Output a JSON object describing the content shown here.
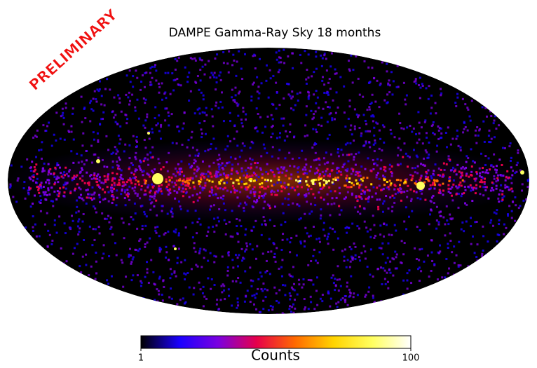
{
  "chart_data": {
    "type": "mollweide-map",
    "title": "DAMPE Gamma-Ray Sky 18 months",
    "watermark": "PRELIMINARY",
    "colorbar": {
      "label": "Counts",
      "lim": [
        1,
        100
      ],
      "ticks": [
        1,
        100
      ],
      "log": true,
      "colormap": [
        "#000000",
        "#1a00ff",
        "#7a00e0",
        "#e6004a",
        "#ff6a00",
        "#ffd400",
        "#ffff60",
        "#ffffff"
      ]
    }
  }
}
